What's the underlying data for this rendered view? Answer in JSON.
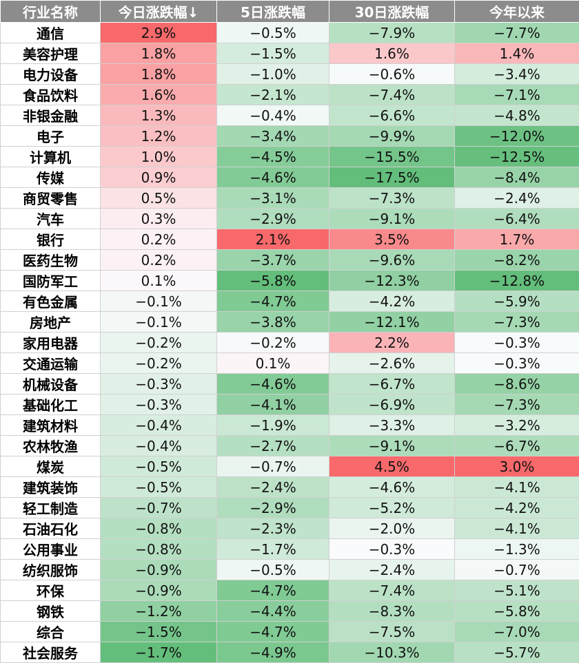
{
  "chart_data": {
    "type": "table",
    "columns": [
      "行业名称",
      "今日涨跌幅↓",
      "5日涨跌幅",
      "30日涨跌幅",
      "今年以来"
    ],
    "colors": {
      "positive": "#f8696b",
      "neutral": "#fcfcff",
      "negative": "#63be7b"
    },
    "rows": [
      {
        "name": "通信",
        "values": [
          "2.9%",
          "−0.5%",
          "−7.9%",
          "−7.7%"
        ],
        "nums": [
          2.9,
          -0.5,
          -7.9,
          -7.7
        ]
      },
      {
        "name": "美容护理",
        "values": [
          "1.8%",
          "−1.5%",
          "1.6%",
          "1.4%"
        ],
        "nums": [
          1.8,
          -1.5,
          1.6,
          1.4
        ]
      },
      {
        "name": "电力设备",
        "values": [
          "1.8%",
          "−1.0%",
          "−0.6%",
          "−3.4%"
        ],
        "nums": [
          1.8,
          -1.0,
          -0.6,
          -3.4
        ]
      },
      {
        "name": "食品饮料",
        "values": [
          "1.6%",
          "−2.1%",
          "−7.4%",
          "−7.1%"
        ],
        "nums": [
          1.6,
          -2.1,
          -7.4,
          -7.1
        ]
      },
      {
        "name": "非银金融",
        "values": [
          "1.3%",
          "−0.4%",
          "−6.6%",
          "−4.8%"
        ],
        "nums": [
          1.3,
          -0.4,
          -6.6,
          -4.8
        ]
      },
      {
        "name": "电子",
        "values": [
          "1.2%",
          "−3.4%",
          "−9.9%",
          "−12.0%"
        ],
        "nums": [
          1.2,
          -3.4,
          -9.9,
          -12.0
        ]
      },
      {
        "name": "计算机",
        "values": [
          "1.0%",
          "−4.5%",
          "−15.5%",
          "−12.5%"
        ],
        "nums": [
          1.0,
          -4.5,
          -15.5,
          -12.5
        ]
      },
      {
        "name": "传媒",
        "values": [
          "0.9%",
          "−4.6%",
          "−17.5%",
          "−8.4%"
        ],
        "nums": [
          0.9,
          -4.6,
          -17.5,
          -8.4
        ]
      },
      {
        "name": "商贸零售",
        "values": [
          "0.5%",
          "−3.1%",
          "−7.3%",
          "−2.4%"
        ],
        "nums": [
          0.5,
          -3.1,
          -7.3,
          -2.4
        ]
      },
      {
        "name": "汽车",
        "values": [
          "0.3%",
          "−2.9%",
          "−9.1%",
          "−6.4%"
        ],
        "nums": [
          0.3,
          -2.9,
          -9.1,
          -6.4
        ]
      },
      {
        "name": "银行",
        "values": [
          "0.2%",
          "2.1%",
          "3.5%",
          "1.7%"
        ],
        "nums": [
          0.2,
          2.1,
          3.5,
          1.7
        ]
      },
      {
        "name": "医药生物",
        "values": [
          "0.2%",
          "−3.7%",
          "−9.6%",
          "−8.2%"
        ],
        "nums": [
          0.2,
          -3.7,
          -9.6,
          -8.2
        ]
      },
      {
        "name": "国防军工",
        "values": [
          "0.1%",
          "−5.8%",
          "−12.3%",
          "−12.8%"
        ],
        "nums": [
          0.1,
          -5.8,
          -12.3,
          -12.8
        ]
      },
      {
        "name": "有色金属",
        "values": [
          "−0.1%",
          "−4.7%",
          "−4.2%",
          "−5.9%"
        ],
        "nums": [
          -0.1,
          -4.7,
          -4.2,
          -5.9
        ]
      },
      {
        "name": "房地产",
        "values": [
          "−0.1%",
          "−3.8%",
          "−12.1%",
          "−7.3%"
        ],
        "nums": [
          -0.1,
          -3.8,
          -12.1,
          -7.3
        ]
      },
      {
        "name": "家用电器",
        "values": [
          "−0.2%",
          "−0.2%",
          "2.2%",
          "−0.3%"
        ],
        "nums": [
          -0.2,
          -0.2,
          2.2,
          -0.3
        ]
      },
      {
        "name": "交通运输",
        "values": [
          "−0.2%",
          "0.1%",
          "−2.6%",
          "−0.3%"
        ],
        "nums": [
          -0.2,
          0.1,
          -2.6,
          -0.3
        ]
      },
      {
        "name": "机械设备",
        "values": [
          "−0.3%",
          "−4.6%",
          "−6.7%",
          "−8.6%"
        ],
        "nums": [
          -0.3,
          -4.6,
          -6.7,
          -8.6
        ]
      },
      {
        "name": "基础化工",
        "values": [
          "−0.3%",
          "−4.1%",
          "−6.9%",
          "−7.3%"
        ],
        "nums": [
          -0.3,
          -4.1,
          -6.9,
          -7.3
        ]
      },
      {
        "name": "建筑材料",
        "values": [
          "−0.4%",
          "−1.9%",
          "−3.3%",
          "−3.2%"
        ],
        "nums": [
          -0.4,
          -1.9,
          -3.3,
          -3.2
        ]
      },
      {
        "name": "农林牧渔",
        "values": [
          "−0.4%",
          "−2.7%",
          "−9.1%",
          "−6.7%"
        ],
        "nums": [
          -0.4,
          -2.7,
          -9.1,
          -6.7
        ]
      },
      {
        "name": "煤炭",
        "values": [
          "−0.5%",
          "−0.7%",
          "4.5%",
          "3.0%"
        ],
        "nums": [
          -0.5,
          -0.7,
          4.5,
          3.0
        ]
      },
      {
        "name": "建筑装饰",
        "values": [
          "−0.5%",
          "−2.4%",
          "−4.6%",
          "−4.1%"
        ],
        "nums": [
          -0.5,
          -2.4,
          -4.6,
          -4.1
        ]
      },
      {
        "name": "轻工制造",
        "values": [
          "−0.7%",
          "−2.9%",
          "−5.2%",
          "−4.2%"
        ],
        "nums": [
          -0.7,
          -2.9,
          -5.2,
          -4.2
        ]
      },
      {
        "name": "石油石化",
        "values": [
          "−0.8%",
          "−2.3%",
          "−2.0%",
          "−4.1%"
        ],
        "nums": [
          -0.8,
          -2.3,
          -2.0,
          -4.1
        ]
      },
      {
        "name": "公用事业",
        "values": [
          "−0.8%",
          "−1.7%",
          "−0.3%",
          "−1.3%"
        ],
        "nums": [
          -0.8,
          -1.7,
          -0.3,
          -1.3
        ]
      },
      {
        "name": "纺织服饰",
        "values": [
          "−0.9%",
          "−0.5%",
          "−2.4%",
          "−0.7%"
        ],
        "nums": [
          -0.9,
          -0.5,
          -2.4,
          -0.7
        ]
      },
      {
        "name": "环保",
        "values": [
          "−0.9%",
          "−4.7%",
          "−7.4%",
          "−5.1%"
        ],
        "nums": [
          -0.9,
          -4.7,
          -7.4,
          -5.1
        ]
      },
      {
        "name": "钢铁",
        "values": [
          "−1.2%",
          "−4.4%",
          "−8.3%",
          "−5.8%"
        ],
        "nums": [
          -1.2,
          -4.4,
          -8.3,
          -5.8
        ]
      },
      {
        "name": "综合",
        "values": [
          "−1.5%",
          "−4.7%",
          "−7.5%",
          "−7.0%"
        ],
        "nums": [
          -1.5,
          -4.7,
          -7.5,
          -7.0
        ]
      },
      {
        "name": "社会服务",
        "values": [
          "−1.7%",
          "−4.9%",
          "−10.3%",
          "−5.7%"
        ],
        "nums": [
          -1.7,
          -4.9,
          -10.3,
          -5.7
        ]
      }
    ]
  }
}
